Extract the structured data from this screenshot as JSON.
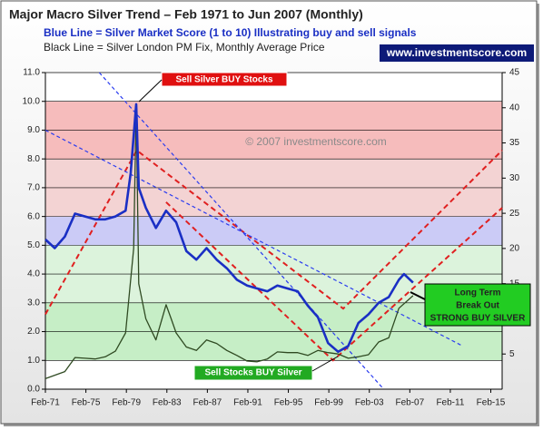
{
  "chart_data": {
    "type": "line",
    "title": "Major Macro Silver Trend – Feb 1971 to Jun 2007 (Monthly)",
    "subtitle": "Blue Line = Silver Market Score (1 to 10) Illustrating buy and sell signals",
    "subtitle2": "Black Line = Silver London PM Fix, Monthly Average Price",
    "badge": "www.investmentscore.com",
    "watermark": "© 2007 investmentscore.com",
    "annotations": [
      "Sell Silver BUY Stocks",
      "Sell Stocks BUY Silver",
      "Long Term",
      "Break Out",
      "STRONG BUY SILVER"
    ],
    "xlim": [
      1971.08,
      2016.2
    ],
    "xticks": [
      {
        "value": 1971.08,
        "label": "Feb-71"
      },
      {
        "value": 1975.08,
        "label": "Feb-75"
      },
      {
        "value": 1979.08,
        "label": "Feb-79"
      },
      {
        "value": 1983.08,
        "label": "Feb-83"
      },
      {
        "value": 1987.08,
        "label": "Feb-87"
      },
      {
        "value": 1991.08,
        "label": "Feb-91"
      },
      {
        "value": 1995.08,
        "label": "Feb-95"
      },
      {
        "value": 1999.08,
        "label": "Feb-99"
      },
      {
        "value": 2003.08,
        "label": "Feb-03"
      },
      {
        "value": 2007.08,
        "label": "Feb-07"
      },
      {
        "value": 2011.08,
        "label": "Feb-11"
      },
      {
        "value": 2015.08,
        "label": "Feb-15"
      }
    ],
    "ylim": [
      0,
      11
    ],
    "yticks": [
      {
        "value": 0,
        "label": "0.0"
      },
      {
        "value": 1,
        "label": "1.0"
      },
      {
        "value": 2,
        "label": "2.0"
      },
      {
        "value": 3,
        "label": "3.0"
      },
      {
        "value": 4,
        "label": "4.0"
      },
      {
        "value": 5,
        "label": "5.0"
      },
      {
        "value": 6,
        "label": "6.0"
      },
      {
        "value": 7,
        "label": "7.0"
      },
      {
        "value": 8,
        "label": "8.0"
      },
      {
        "value": 9,
        "label": "9.0"
      },
      {
        "value": 10,
        "label": "10.0"
      },
      {
        "value": 11,
        "label": "11.0"
      }
    ],
    "y2lim": [
      0,
      45
    ],
    "y2ticks": [
      5,
      10,
      15,
      20,
      25,
      30,
      35,
      40,
      45
    ],
    "grid": true,
    "bands": [
      {
        "from": 1,
        "to": 3,
        "color": "#c6eec6"
      },
      {
        "from": 3,
        "to": 5,
        "color": "#dcf3dc"
      },
      {
        "from": 5,
        "to": 6,
        "color": "#cbcbf6"
      },
      {
        "from": 6,
        "to": 8,
        "color": "#f3d3d3"
      },
      {
        "from": 8,
        "to": 10,
        "color": "#f6bcbc"
      }
    ],
    "series": [
      {
        "name": "Silver Market Score",
        "color": "#1a2fc4",
        "x": [
          1971.08,
          1972,
          1973,
          1974,
          1975,
          1976,
          1977,
          1978,
          1979,
          1979.5,
          1980.05,
          1980.3,
          1981,
          1982,
          1983,
          1984,
          1985,
          1986,
          1987,
          1988,
          1989,
          1990,
          1991,
          1992,
          1993,
          1994,
          1995,
          1996,
          1997,
          1998,
          1999,
          2000,
          2001,
          2002,
          2003,
          2004,
          2005,
          2006,
          2006.5,
          2007.4
        ],
        "values": [
          5.2,
          4.9,
          5.3,
          6.1,
          6.0,
          5.9,
          5.9,
          6.0,
          6.2,
          7.5,
          9.9,
          7.0,
          6.3,
          5.6,
          6.2,
          5.8,
          4.8,
          4.5,
          4.9,
          4.5,
          4.2,
          3.8,
          3.6,
          3.5,
          3.4,
          3.6,
          3.5,
          3.4,
          2.9,
          2.5,
          1.6,
          1.3,
          1.5,
          2.3,
          2.6,
          3.0,
          3.2,
          3.8,
          4.0,
          3.7
        ]
      },
      {
        "name": "Silver London PM Fix",
        "color": "#2f4a22",
        "axis": "y2",
        "x": [
          1971.08,
          1973,
          1974,
          1975,
          1976,
          1977,
          1978,
          1979,
          1979.8,
          1980.05,
          1980.3,
          1981,
          1982,
          1983,
          1983.5,
          1984,
          1985,
          1986,
          1987,
          1988,
          1989,
          1990,
          1991,
          1992,
          1993,
          1994,
          1995,
          1996,
          1997,
          1998,
          1999,
          2000,
          2001,
          2002,
          2003,
          2004,
          2005,
          2006,
          2007.4
        ],
        "values": [
          1.5,
          2.5,
          4.5,
          4.4,
          4.3,
          4.6,
          5.4,
          8,
          20,
          40,
          15,
          10,
          7,
          12,
          10,
          8,
          6,
          5.5,
          7,
          6.5,
          5.5,
          4.8,
          4,
          3.9,
          4.3,
          5.3,
          5.2,
          5.2,
          4.8,
          5.5,
          5.2,
          5.0,
          4.4,
          4.6,
          4.9,
          6.7,
          7.3,
          11.5,
          13.3
        ]
      }
    ],
    "trend_lines": [
      {
        "color": "#e02020",
        "x": [
          1971.08,
          1980.1,
          2000.5,
          2016.2
        ],
        "values": [
          2.6,
          8.3,
          2.8,
          8.3
        ]
      },
      {
        "color": "#e02020",
        "x": [
          1983,
          1999.5,
          2016.2
        ],
        "values": [
          6.5,
          1.0,
          6.3
        ]
      },
      {
        "color": "#2a3cf0",
        "x": [
          1971.08,
          2012.3
        ],
        "values": [
          9.0,
          1.5
        ]
      },
      {
        "color": "#2a3cf0",
        "x": [
          1976.4,
          2004.5
        ],
        "values": [
          11,
          0
        ]
      }
    ]
  }
}
